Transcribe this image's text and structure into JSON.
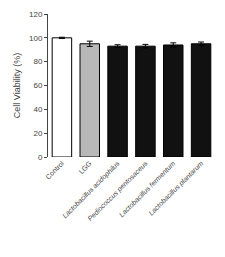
{
  "chart_data": {
    "type": "bar",
    "categories": [
      "Control",
      "LGG",
      "Lactobacillus acidophilus",
      "Pediococcus pentosaceus",
      "Lactobacillus fermentum",
      "Lactobacillus plantarum"
    ],
    "values": [
      100.0,
      95.0,
      93.0,
      93.0,
      94.0,
      95.0
    ],
    "errors": [
      0.5,
      2.2,
      1.2,
      1.5,
      1.8,
      1.5
    ],
    "colors": [
      "white",
      "#b8b8b8",
      "#111111",
      "#111111",
      "#111111",
      "#111111"
    ],
    "ylabel": "Cell Viability (%)",
    "ylim": [
      0,
      120
    ],
    "yticks": [
      0,
      20,
      40,
      60,
      80,
      100,
      120
    ],
    "grid": false
  }
}
